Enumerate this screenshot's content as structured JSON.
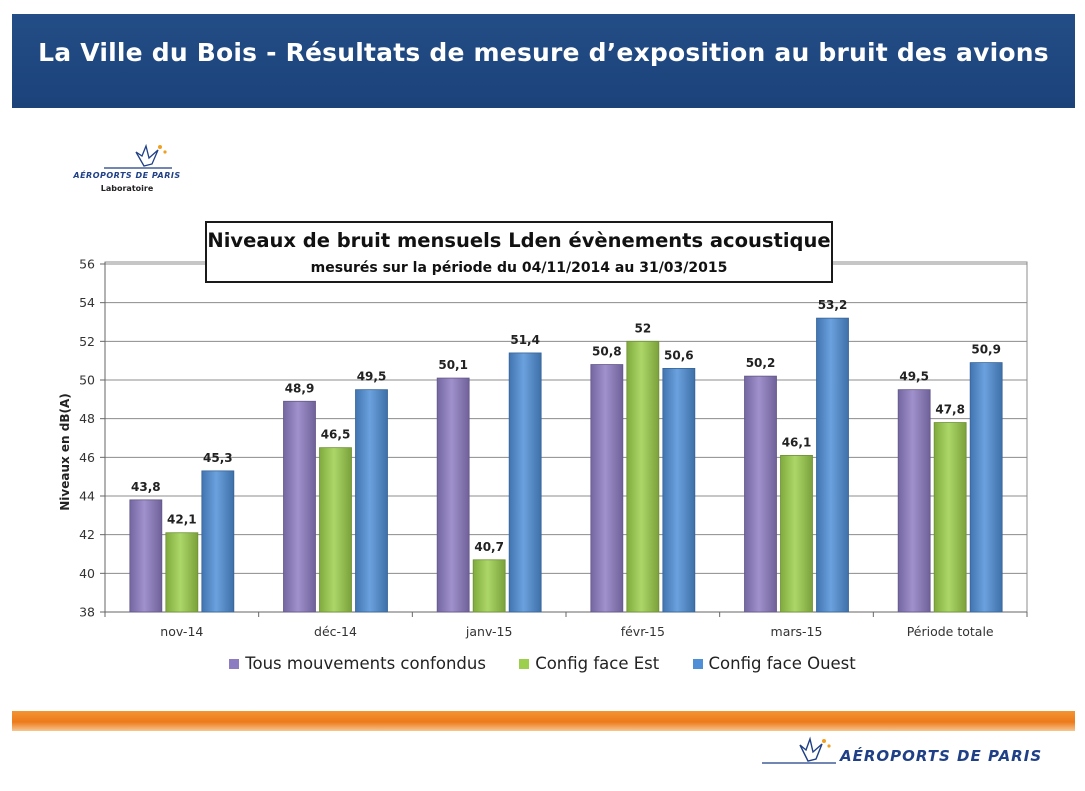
{
  "header": {
    "title": "La Ville du Bois - Résultats de mesure d’exposition au bruit des avions"
  },
  "logo_top": {
    "brand": "AÉROPORTS DE PARIS",
    "subtitle": "Laboratoire",
    "icon": "adp-bird-logo-icon",
    "color": "#1f3f86"
  },
  "logo_bottom": {
    "brand": "AÉROPORTS DE PARIS",
    "icon": "adp-bird-logo-icon",
    "color": "#1f3f86"
  },
  "colors": {
    "banner": "#1f4680",
    "footer_bar": "#ec7a1a"
  },
  "chart_data": {
    "type": "bar",
    "title": "Niveaux de bruit mensuels Lden évènements acoustique",
    "subtitle": "mesurés sur la période du 04/11/2014 au 31/03/2015",
    "xlabel": "",
    "ylabel": "Niveaux en dB(A)",
    "ylim": [
      38,
      56
    ],
    "yticks": [
      38,
      40,
      42,
      44,
      46,
      48,
      50,
      52,
      54,
      56
    ],
    "grid": true,
    "legend_position": "bottom",
    "categories": [
      "nov-14",
      "déc-14",
      "janv-15",
      "févr-15",
      "mars-15",
      "Période totale"
    ],
    "series": [
      {
        "name": "Tous mouvements confondus",
        "values": [
          43.8,
          48.9,
          50.1,
          50.8,
          50.2,
          49.5
        ],
        "labels": [
          "43,8",
          "48,9",
          "50,1",
          "50,8",
          "50,2",
          "49,5"
        ],
        "color": "#8e7cc3"
      },
      {
        "name": "Config face Est",
        "values": [
          42.1,
          46.5,
          40.7,
          52,
          46.1,
          47.8
        ],
        "labels": [
          "42,1",
          "46,5",
          "40,7",
          "52",
          "46,1",
          "47,8"
        ],
        "color": "#9ccf4b"
      },
      {
        "name": "Config face Ouest",
        "values": [
          45.3,
          49.5,
          51.4,
          50.6,
          53.2,
          50.9
        ],
        "labels": [
          "45,3",
          "49,5",
          "51,4",
          "50,6",
          "53,2",
          "50,9"
        ],
        "color": "#4f8fd8"
      }
    ]
  }
}
